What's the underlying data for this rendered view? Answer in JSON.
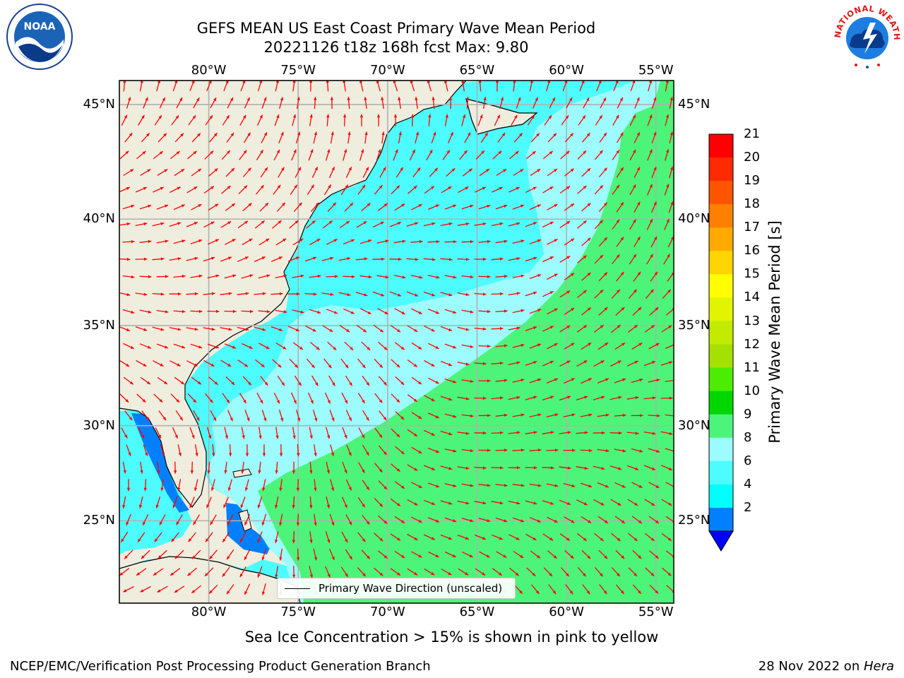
{
  "title": {
    "line1": "GEFS MEAN US East Coast Primary Wave Mean Period",
    "line2": "20221126 t18z 168h fcst   Max: 9.80"
  },
  "map": {
    "lon_labels": [
      "80°W",
      "75°W",
      "70°W",
      "65°W",
      "60°W",
      "55°W"
    ],
    "lat_labels": [
      "45°N",
      "40°N",
      "35°N",
      "30°N",
      "25°N"
    ],
    "lon_range": [
      -85,
      -54
    ],
    "lat_range": [
      20.5,
      46
    ],
    "vector_color": "#ff0000",
    "land_color": "#efedde",
    "legend_label": "Primary Wave Direction (unscaled)"
  },
  "colorbar": {
    "label": "Primary Wave Mean Period [s]",
    "ticks": [
      "21",
      "20",
      "19",
      "18",
      "17",
      "16",
      "15",
      "14",
      "13",
      "12",
      "11",
      "10",
      "9",
      "8",
      "6",
      "4",
      "2"
    ],
    "colors": [
      "#ff0000",
      "#ff2a00",
      "#ff5500",
      "#ff8000",
      "#ffaa00",
      "#ffd500",
      "#ffff00",
      "#e1f500",
      "#c3eb00",
      "#a5e100",
      "#4ded00",
      "#00d700",
      "#4cf57a",
      "#9cfcff",
      "#4dfcff",
      "#00ffff",
      "#0080ff",
      "#0000ff"
    ],
    "extend": "min"
  },
  "logos": {
    "left": "NOAA",
    "right": "NATIONAL WEATHER SERVICE"
  },
  "note": "Sea Ice Concentration > 15% is shown in pink to yellow",
  "footer": {
    "left": "NCEP/EMC/Verification Post Processing Product Generation Branch",
    "right_date": "28 Nov 2022 on ",
    "right_machine": "Hera"
  }
}
